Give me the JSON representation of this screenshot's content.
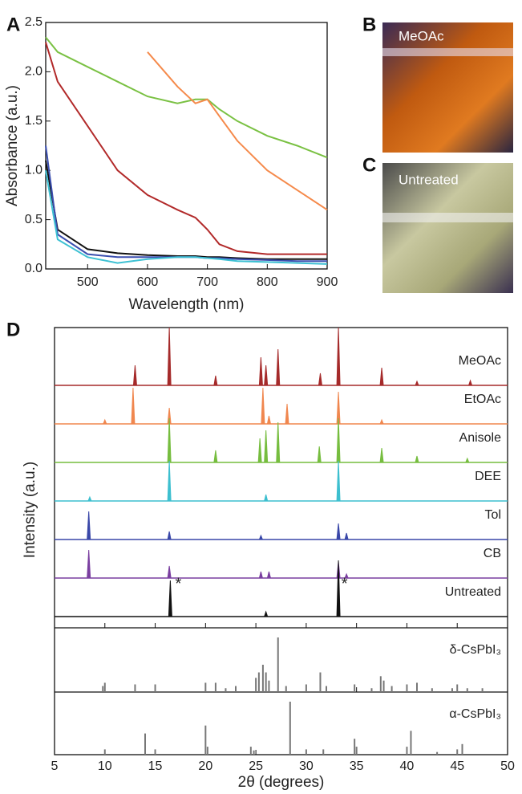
{
  "chart_data": [
    {
      "type": "line",
      "panel": "A",
      "xlabel": "Wavelength (nm)",
      "ylabel": "Absorbance (a.u.)",
      "x": [
        430,
        450,
        500,
        550,
        600,
        650,
        680,
        700,
        720,
        750,
        800,
        850,
        900
      ],
      "series": [
        {
          "color": "#7ac143",
          "values": [
            2.35,
            2.2,
            2.05,
            1.9,
            1.75,
            1.68,
            1.72,
            1.72,
            1.62,
            1.5,
            1.35,
            1.25,
            1.13
          ]
        },
        {
          "color": "#f58a4b",
          "values": [
            null,
            null,
            null,
            null,
            2.2,
            1.85,
            1.68,
            1.72,
            1.55,
            1.3,
            1.0,
            0.8,
            0.6
          ]
        },
        {
          "color": "#b22a2a",
          "values": [
            2.3,
            1.9,
            1.45,
            1.0,
            0.75,
            0.6,
            0.52,
            0.4,
            0.25,
            0.18,
            0.15,
            0.15,
            0.15
          ]
        },
        {
          "color": "#111111",
          "values": [
            1.1,
            0.4,
            0.2,
            0.16,
            0.14,
            0.13,
            0.13,
            0.12,
            0.12,
            0.11,
            0.1,
            0.1,
            0.1
          ]
        },
        {
          "color": "#3b4fb0",
          "values": [
            1.25,
            0.35,
            0.15,
            0.12,
            0.12,
            0.12,
            0.12,
            0.11,
            0.11,
            0.1,
            0.09,
            0.08,
            0.08
          ]
        },
        {
          "color": "#3ec1d3",
          "values": [
            1.0,
            0.3,
            0.12,
            0.06,
            0.1,
            0.12,
            0.12,
            0.11,
            0.1,
            0.08,
            0.07,
            0.06,
            0.05
          ]
        }
      ],
      "xlim": [
        430,
        900
      ],
      "xticks": [
        500,
        600,
        700,
        800,
        900
      ],
      "ylim": [
        0,
        2.5
      ],
      "yticks": [
        {
          "value": 0,
          "label": "0.0"
        },
        0.5,
        {
          "value": 1,
          "label": "1.0"
        },
        1.5,
        {
          "value": 2,
          "label": "2.0"
        },
        2.5
      ]
    },
    {
      "type": "xrd",
      "panel": "D",
      "xlabel": "2θ (degrees)",
      "ylabel": "Intensity (a.u.)",
      "xlim": [
        5,
        50
      ],
      "xticks": [
        5,
        10,
        15,
        20,
        25,
        30,
        35,
        40,
        45,
        50
      ],
      "series": [
        {
          "name": "MeOAc",
          "color": "#a52a2a",
          "x": [
            13,
            16.4,
            21,
            25.5,
            26,
            27.2,
            31.4,
            33.2,
            37.5,
            41,
            46.3
          ],
          "values": [
            25,
            72,
            12,
            35,
            25,
            45,
            15,
            72,
            22,
            5,
            6
          ]
        },
        {
          "name": "EtOAc",
          "color": "#f0874f",
          "x": [
            10,
            12.8,
            16.4,
            25.7,
            26.3,
            28.1,
            33.2,
            37.5
          ],
          "values": [
            5,
            45,
            20,
            45,
            10,
            25,
            40,
            5
          ]
        },
        {
          "name": "Anisole",
          "color": "#76bd3f",
          "x": [
            16.4,
            21,
            25.4,
            26,
            27.2,
            31.3,
            33.2,
            37.5,
            41,
            46
          ],
          "values": [
            55,
            15,
            30,
            40,
            50,
            20,
            55,
            18,
            8,
            5
          ]
        },
        {
          "name": "DEE",
          "color": "#3dbfcf",
          "x": [
            8.5,
            16.4,
            26,
            33.2
          ],
          "values": [
            5,
            50,
            8,
            50
          ]
        },
        {
          "name": "Tol",
          "color": "#3947a8",
          "x": [
            8.4,
            16.4,
            25.5,
            33.2,
            34
          ],
          "values": [
            35,
            10,
            5,
            20,
            8
          ]
        },
        {
          "name": "CB",
          "color": "#7a3fa0",
          "x": [
            8.4,
            16.4,
            25.5,
            26.3,
            33.2,
            34
          ],
          "values": [
            35,
            15,
            8,
            8,
            20,
            5
          ]
        },
        {
          "name": "Untreated",
          "color": "#111111",
          "x": [
            16.5,
            26,
            33.2
          ],
          "values": [
            45,
            6,
            70
          ]
        }
      ],
      "annotations": [
        {
          "text": "*",
          "x": 17.3
        },
        {
          "text": "*",
          "x": 33.8
        }
      ],
      "references": [
        {
          "name": "δ-CsPbI₃",
          "x": [
            9.8,
            10,
            13,
            15,
            20,
            21,
            22,
            23,
            25,
            25.3,
            25.7,
            26,
            26.3,
            27.2,
            28,
            30,
            31.4,
            32,
            34.8,
            36.5,
            37.4,
            37.7,
            38.5,
            40,
            41,
            42.5,
            44.5,
            45,
            46,
            47.5
          ],
          "values": [
            11,
            17,
            14,
            14,
            17,
            17,
            7,
            11,
            26,
            36,
            50,
            36,
            21,
            100,
            11,
            14,
            36,
            11,
            14,
            7,
            29,
            21,
            11,
            14,
            17,
            7,
            7,
            14,
            7,
            7
          ]
        },
        {
          "name": "α-CsPbI₃",
          "x": [
            10,
            14,
            15,
            20,
            20.2,
            24.5,
            24.8,
            28.4,
            30,
            31.7,
            34.8,
            35,
            40,
            40.4,
            43,
            45,
            45.5
          ],
          "values": [
            10,
            40,
            10,
            55,
            15,
            15,
            8,
            100,
            10,
            10,
            30,
            15,
            15,
            45,
            5,
            10,
            20
          ]
        }
      ]
    }
  ],
  "photos": [
    {
      "panel": "B",
      "caption": "MeOAc"
    },
    {
      "panel": "C",
      "caption": "Untreated"
    }
  ]
}
